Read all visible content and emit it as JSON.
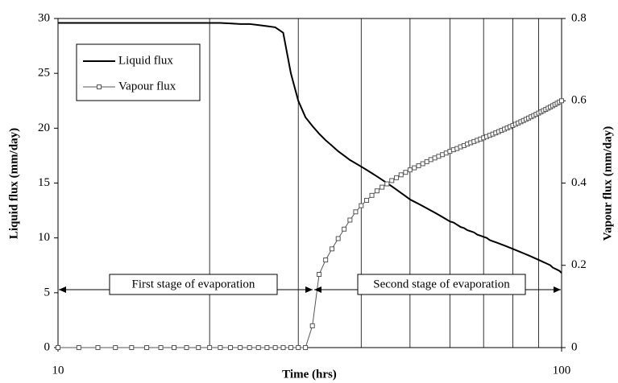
{
  "chart_data": {
    "type": "line",
    "xlabel": "Time (hrs)",
    "ylabel": "Liquid flux (mm/day)",
    "y2label": "Vapour flux (mm/day)",
    "xlog": true,
    "xlim": [
      10,
      100
    ],
    "xticks": [
      10,
      100
    ],
    "x_minor_grid": [
      20,
      30,
      40,
      50,
      60,
      70,
      80,
      90
    ],
    "ylim": [
      0,
      30
    ],
    "yticks": [
      0,
      5,
      10,
      15,
      20,
      25,
      30
    ],
    "y2lim": [
      0,
      0.8
    ],
    "y2ticks": [
      0,
      0.2,
      0.4,
      0.6,
      0.8
    ],
    "legend": "upper left",
    "annotations": [
      "First stage of evaporation",
      "Second stage of evaporation"
    ],
    "x": [
      10,
      11,
      12,
      13,
      14,
      15,
      16,
      17,
      18,
      19,
      20,
      21,
      22,
      23,
      24,
      25,
      26,
      27,
      28,
      29,
      30,
      31,
      32,
      33,
      34,
      35,
      36,
      37,
      38,
      39,
      40,
      41,
      42,
      43,
      44,
      45,
      46,
      47,
      48,
      49,
      50,
      51,
      52,
      53,
      54,
      55,
      56,
      57,
      58,
      59,
      60,
      61,
      62,
      63,
      64,
      65,
      66,
      67,
      68,
      69,
      70,
      71,
      72,
      73,
      74,
      75,
      76,
      77,
      78,
      79,
      80,
      81,
      82,
      83,
      84,
      85,
      86,
      87,
      88,
      89,
      90,
      91,
      92,
      93,
      94,
      95,
      96,
      97,
      98,
      99,
      100
    ],
    "series": [
      {
        "name": "Liquid flux",
        "color": "#000000",
        "marker": "none",
        "values": [
          29.6,
          29.6,
          29.6,
          29.6,
          29.6,
          29.6,
          29.6,
          29.6,
          29.6,
          29.6,
          29.6,
          29.6,
          29.55,
          29.5,
          29.5,
          29.4,
          29.3,
          29.2,
          28.7,
          25.0,
          22.5,
          21.0,
          20.2,
          19.5,
          18.9,
          18.4,
          17.9,
          17.5,
          17.1,
          16.8,
          16.5,
          16.2,
          15.9,
          15.6,
          15.3,
          15.0,
          14.7,
          14.4,
          14.1,
          13.8,
          13.5,
          13.3,
          13.1,
          12.9,
          12.7,
          12.5,
          12.3,
          12.1,
          11.9,
          11.7,
          11.5,
          11.4,
          11.2,
          11.0,
          10.9,
          10.7,
          10.6,
          10.5,
          10.3,
          10.2,
          10.1,
          10.0,
          9.8,
          9.7,
          9.6,
          9.5,
          9.4,
          9.3,
          9.2,
          9.1,
          9.0,
          8.9,
          8.8,
          8.7,
          8.6,
          8.5,
          8.4,
          8.3,
          8.2,
          8.1,
          8.0,
          7.9,
          7.8,
          7.7,
          7.6,
          7.5,
          7.3,
          7.2,
          7.1,
          7.0,
          6.8
        ]
      },
      {
        "name": "Vapour flux",
        "color": "#555555",
        "marker": "square",
        "axis": "y2",
        "values": [
          0,
          0,
          0,
          0,
          0,
          0,
          0,
          0,
          0,
          0,
          0,
          0,
          0,
          0,
          0,
          0,
          0,
          0,
          0,
          0,
          0,
          0,
          0.053,
          0.178,
          0.213,
          0.24,
          0.265,
          0.288,
          0.31,
          0.33,
          0.345,
          0.358,
          0.37,
          0.381,
          0.39,
          0.398,
          0.406,
          0.413,
          0.42,
          0.426,
          0.432,
          0.437,
          0.442,
          0.447,
          0.452,
          0.457,
          0.461,
          0.465,
          0.469,
          0.473,
          0.477,
          0.481,
          0.484,
          0.488,
          0.491,
          0.495,
          0.498,
          0.501,
          0.504,
          0.507,
          0.51,
          0.513,
          0.516,
          0.519,
          0.522,
          0.525,
          0.528,
          0.531,
          0.534,
          0.537,
          0.54,
          0.543,
          0.546,
          0.549,
          0.552,
          0.555,
          0.558,
          0.561,
          0.564,
          0.567,
          0.57,
          0.573,
          0.576,
          0.579,
          0.582,
          0.585,
          0.588,
          0.591,
          0.594,
          0.597,
          0.6
        ]
      }
    ]
  }
}
